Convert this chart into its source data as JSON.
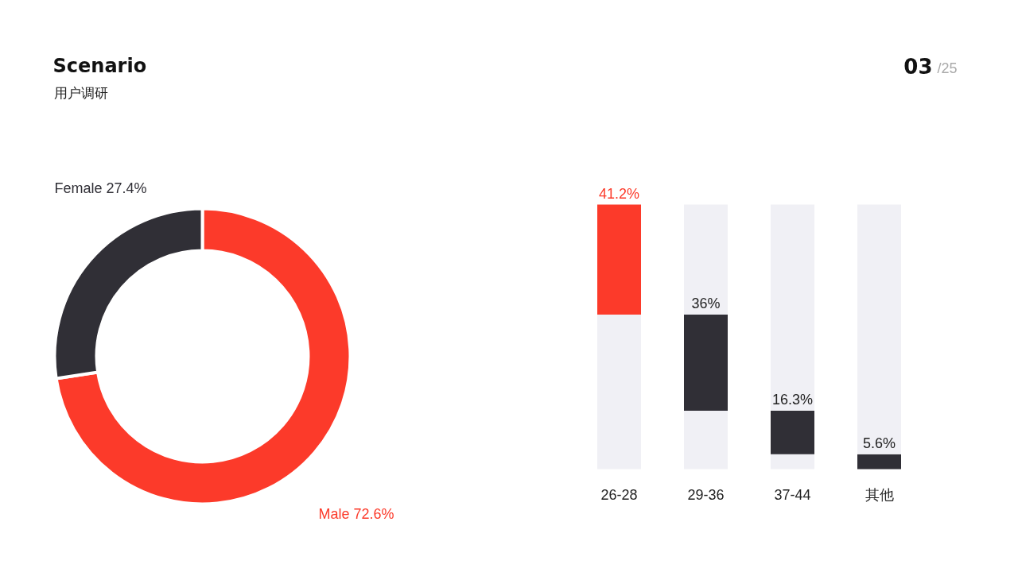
{
  "chart_data": [
    {
      "type": "donut",
      "title": "Scenario",
      "subtitle": "用户调研",
      "annotations": [
        "03",
        "/25"
      ],
      "categories": [
        "Male",
        "Female"
      ],
      "values": [
        72.6,
        27.4
      ],
      "colors": [
        "#fc3a2a",
        "#302f36"
      ],
      "value_labels": [
        "72.6%",
        "27.4%"
      ]
    },
    {
      "type": "bar",
      "categories": [
        "26-28",
        "29-36",
        "37-44",
        "其他"
      ],
      "stacked": true,
      "series": [
        {
          "color": "#f0f0f5",
          "values": [
            57.9,
            21.9,
            5.6,
            null
          ]
        },
        {
          "colors": [
            "#fc3a2a",
            "#302f36",
            "#302f36",
            "#302f36"
          ],
          "values": [
            41.2,
            36,
            16.3,
            5.6
          ],
          "value_labels": [
            "41.2%",
            "36%",
            "16.3%",
            "5.6%"
          ]
        },
        {
          "color": "#f0f0f5",
          "values": [
            null,
            41.2,
            77.2,
            93.5
          ]
        }
      ]
    }
  ]
}
